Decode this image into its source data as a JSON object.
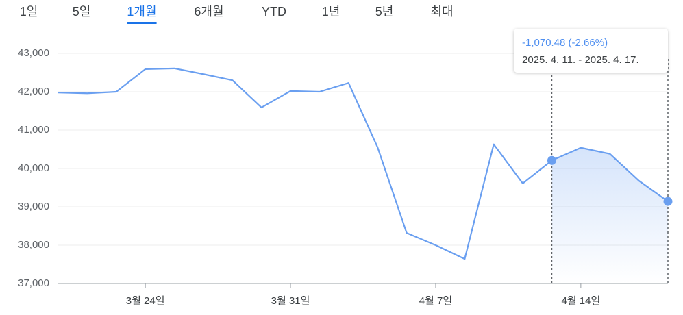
{
  "tabs": [
    "1일",
    "5일",
    "1개월",
    "6개월",
    "YTD",
    "1년",
    "5년",
    "최대"
  ],
  "selected_tab": 2,
  "chart_data": {
    "type": "line",
    "categories": [
      null,
      null,
      null,
      "3월 24일",
      null,
      null,
      null,
      null,
      "3월 31일",
      null,
      null,
      null,
      null,
      "4월 7일",
      null,
      null,
      null,
      null,
      "4월 14일",
      null,
      null,
      null
    ],
    "values": [
      41980,
      41960,
      42000,
      42590,
      42610,
      42460,
      42300,
      41590,
      42020,
      42000,
      42230,
      40550,
      38320,
      38000,
      37640,
      40630,
      39610,
      40210,
      40540,
      40380,
      39680,
      39140
    ],
    "color": "#6a9ff0",
    "ylim": [
      37000,
      43000
    ],
    "yticks": [
      {
        "value": 37000,
        "label": "37,000"
      },
      {
        "value": 38000,
        "label": "38,000"
      },
      {
        "value": 39000,
        "label": "39,000"
      },
      {
        "value": 40000,
        "label": "40,000"
      },
      {
        "value": 41000,
        "label": "41,000"
      },
      {
        "value": 42000,
        "label": "42,000"
      },
      {
        "value": 43000,
        "label": "43,000"
      }
    ],
    "grid": true,
    "range": {
      "start_index": 17,
      "end_index": 21,
      "change": "-1,070.48 (-2.66%)",
      "period": "2025. 4. 11. - 2025. 4. 17."
    }
  }
}
